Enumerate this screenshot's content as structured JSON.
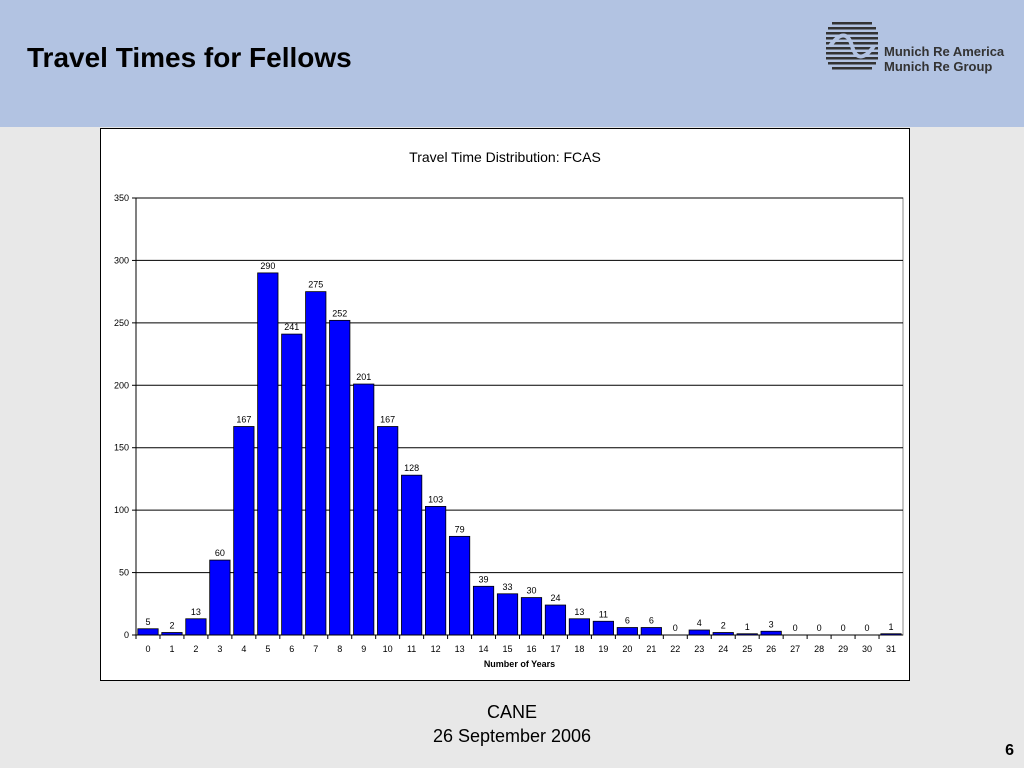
{
  "slide": {
    "title": "Travel Times for Fellows",
    "logo": {
      "line1": "Munich Re America",
      "line2": "Munich Re Group",
      "icon": "munich-re-logo"
    },
    "footer": {
      "line1": "CANE",
      "line2": "26 September 2006"
    },
    "page_number": "6",
    "colors": {
      "header_bg": "#b2c3e2",
      "slide_bg": "#e8e8e8",
      "bar": "#0000ff"
    }
  },
  "chart_data": {
    "type": "bar",
    "title": "Travel Time Distribution:  FCAS",
    "xlabel": "Number of Years",
    "ylabel": "",
    "categories": [
      "0",
      "1",
      "2",
      "3",
      "4",
      "5",
      "6",
      "7",
      "8",
      "9",
      "10",
      "11",
      "12",
      "13",
      "14",
      "15",
      "16",
      "17",
      "18",
      "19",
      "20",
      "21",
      "22",
      "23",
      "24",
      "25",
      "26",
      "27",
      "28",
      "29",
      "30",
      "31"
    ],
    "values": [
      5,
      2,
      13,
      60,
      167,
      290,
      241,
      275,
      252,
      201,
      167,
      128,
      103,
      79,
      39,
      33,
      30,
      24,
      13,
      11,
      6,
      6,
      0,
      4,
      2,
      1,
      3,
      0,
      0,
      0,
      0,
      1
    ],
    "ylim": [
      0,
      350
    ],
    "yticks": [
      0,
      50,
      100,
      150,
      200,
      250,
      300,
      350
    ],
    "grid": true,
    "legend": "none",
    "data_labels": true
  }
}
